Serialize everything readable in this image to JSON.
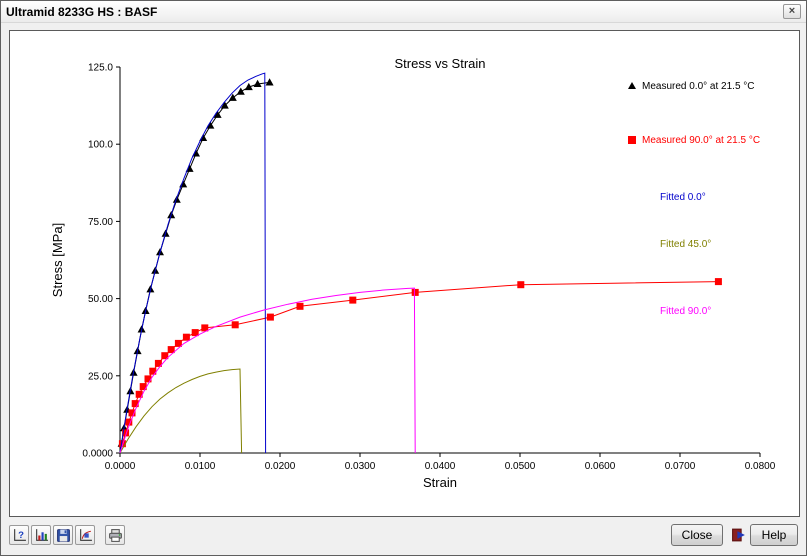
{
  "window": {
    "title": "Ultramid 8233G HS : BASF",
    "close_glyph": "×"
  },
  "chart_data": {
    "type": "line",
    "title": "Stress vs Strain",
    "xlabel": "Strain",
    "ylabel": "Stress [MPa]",
    "xlim": [
      0,
      0.08
    ],
    "ylim": [
      0,
      125
    ],
    "grid": false,
    "legend_position": "inside-top-right",
    "xticks": [
      {
        "v": 0,
        "label": "0.0000"
      },
      {
        "v": 0.01,
        "label": "0.0100"
      },
      {
        "v": 0.02,
        "label": "0.0200"
      },
      {
        "v": 0.03,
        "label": "0.0300"
      },
      {
        "v": 0.04,
        "label": "0.0400"
      },
      {
        "v": 0.05,
        "label": "0.0500"
      },
      {
        "v": 0.06,
        "label": "0.0600"
      },
      {
        "v": 0.07,
        "label": "0.0700"
      },
      {
        "v": 0.08,
        "label": "0.0800"
      }
    ],
    "yticks": [
      {
        "v": 0,
        "label": "0.0000"
      },
      {
        "v": 25,
        "label": "25.00"
      },
      {
        "v": 50,
        "label": "50.00"
      },
      {
        "v": 75,
        "label": "75.00"
      },
      {
        "v": 100,
        "label": "100.0"
      },
      {
        "v": 125,
        "label": "125.0"
      }
    ],
    "series": [
      {
        "name": "Measured 0.0° at 21.5 °C",
        "color": "#000000",
        "marker": "triangle",
        "points": [
          [
            0.0002,
            3
          ],
          [
            0.0005,
            8
          ],
          [
            0.0009,
            14
          ],
          [
            0.0013,
            20
          ],
          [
            0.0017,
            26
          ],
          [
            0.0022,
            33
          ],
          [
            0.0027,
            40
          ],
          [
            0.0032,
            46
          ],
          [
            0.0038,
            53
          ],
          [
            0.0044,
            59
          ],
          [
            0.005,
            65
          ],
          [
            0.0057,
            71
          ],
          [
            0.0064,
            77
          ],
          [
            0.0071,
            82
          ],
          [
            0.0079,
            87
          ],
          [
            0.0087,
            92
          ],
          [
            0.0095,
            97
          ],
          [
            0.0104,
            102
          ],
          [
            0.0113,
            106
          ],
          [
            0.0122,
            109.5
          ],
          [
            0.0131,
            112.5
          ],
          [
            0.0141,
            115
          ],
          [
            0.0151,
            117
          ],
          [
            0.0161,
            118.5
          ],
          [
            0.0172,
            119.5
          ],
          [
            0.0187,
            120
          ]
        ]
      },
      {
        "name": "Measured 90.0° at 21.5 °C",
        "color": "#ff0000",
        "marker": "square",
        "points": [
          [
            0.0003,
            3
          ],
          [
            0.0007,
            6.5
          ],
          [
            0.0011,
            10
          ],
          [
            0.0015,
            13
          ],
          [
            0.0019,
            16
          ],
          [
            0.0024,
            19
          ],
          [
            0.0029,
            21.5
          ],
          [
            0.0035,
            24
          ],
          [
            0.0041,
            26.5
          ],
          [
            0.0048,
            29
          ],
          [
            0.0056,
            31.5
          ],
          [
            0.0064,
            33.5
          ],
          [
            0.0073,
            35.5
          ],
          [
            0.0083,
            37.5
          ],
          [
            0.0094,
            39
          ],
          [
            0.0106,
            40.5
          ],
          [
            0.0144,
            41.5
          ],
          [
            0.0188,
            44
          ],
          [
            0.0225,
            47.5
          ],
          [
            0.0291,
            49.5
          ],
          [
            0.0369,
            52
          ],
          [
            0.0501,
            54.5
          ],
          [
            0.0748,
            55.5
          ]
        ]
      },
      {
        "name": "Fitted 0.0°",
        "color": "#0000cc",
        "marker": "none",
        "points": [
          [
            0,
            0
          ],
          [
            0.0008,
            13
          ],
          [
            0.0016,
            25
          ],
          [
            0.0024,
            36
          ],
          [
            0.0032,
            46
          ],
          [
            0.004,
            55
          ],
          [
            0.005,
            65
          ],
          [
            0.006,
            74
          ],
          [
            0.007,
            82
          ],
          [
            0.008,
            89
          ],
          [
            0.009,
            95.5
          ],
          [
            0.01,
            101
          ],
          [
            0.011,
            106
          ],
          [
            0.012,
            110
          ],
          [
            0.013,
            113.5
          ],
          [
            0.014,
            116.5
          ],
          [
            0.015,
            119
          ],
          [
            0.016,
            120.8
          ],
          [
            0.017,
            122
          ],
          [
            0.0178,
            122.8
          ],
          [
            0.0181,
            123
          ],
          [
            0.0182,
            0
          ]
        ]
      },
      {
        "name": "Fitted 45.0°",
        "color": "#808000",
        "marker": "none",
        "points": [
          [
            0,
            0
          ],
          [
            0.001,
            4.5
          ],
          [
            0.002,
            8.5
          ],
          [
            0.003,
            12
          ],
          [
            0.004,
            15
          ],
          [
            0.005,
            17.5
          ],
          [
            0.006,
            19.5
          ],
          [
            0.007,
            21.2
          ],
          [
            0.008,
            22.6
          ],
          [
            0.009,
            23.8
          ],
          [
            0.01,
            24.8
          ],
          [
            0.011,
            25.6
          ],
          [
            0.012,
            26.2
          ],
          [
            0.013,
            26.7
          ],
          [
            0.014,
            27
          ],
          [
            0.015,
            27.2
          ],
          [
            0.0152,
            0
          ]
        ]
      },
      {
        "name": "Fitted 90.0°",
        "color": "#ff00ff",
        "marker": "none",
        "points": [
          [
            0,
            0
          ],
          [
            0.001,
            8
          ],
          [
            0.002,
            14.5
          ],
          [
            0.003,
            20
          ],
          [
            0.004,
            24.5
          ],
          [
            0.005,
            28
          ],
          [
            0.006,
            31
          ],
          [
            0.008,
            35.5
          ],
          [
            0.01,
            38.5
          ],
          [
            0.012,
            41
          ],
          [
            0.015,
            44
          ],
          [
            0.018,
            46.3
          ],
          [
            0.021,
            48.2
          ],
          [
            0.024,
            49.8
          ],
          [
            0.027,
            51
          ],
          [
            0.03,
            52
          ],
          [
            0.033,
            52.8
          ],
          [
            0.036,
            53.3
          ],
          [
            0.0368,
            53.4
          ],
          [
            0.0369,
            0
          ]
        ]
      }
    ]
  },
  "toolbar": {
    "buttons": [
      {
        "icon": "chart-question-icon"
      },
      {
        "icon": "chart-bars-icon"
      },
      {
        "icon": "save-icon"
      },
      {
        "icon": "chart-copy-icon"
      },
      {
        "icon": "printer-icon"
      }
    ]
  },
  "footer": {
    "close_label": "Close",
    "help_label": "Help"
  }
}
